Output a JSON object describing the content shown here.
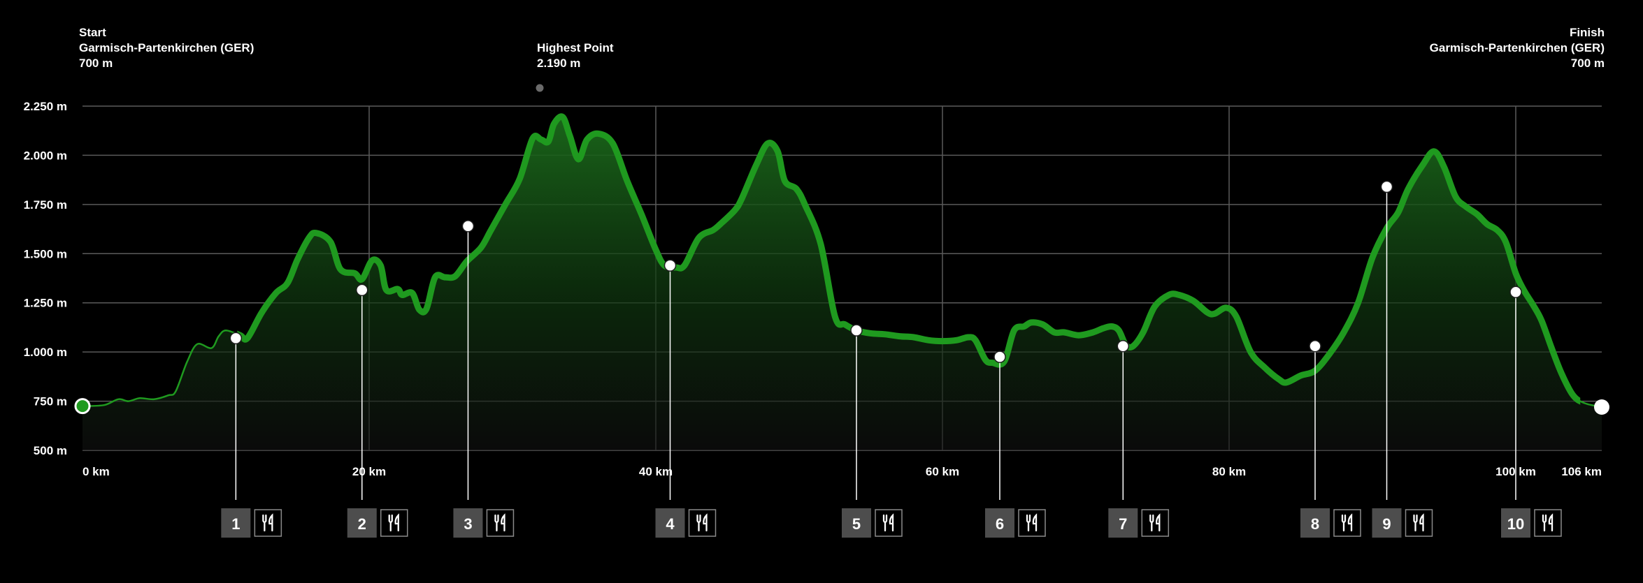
{
  "header": {
    "start": {
      "title": "Start",
      "place": "Garmisch-Partenkirchen (GER)",
      "altitude": "700 m"
    },
    "highest": {
      "title": "Highest Point",
      "altitude": "2.190 m"
    },
    "finish": {
      "title": "Finish",
      "place": "Garmisch-Partenkirchen (GER)",
      "altitude": "700 m"
    }
  },
  "colors": {
    "line": "#1f9a1f",
    "fill_top": "#1b6a1b",
    "grid": "#5a5a5a",
    "badge": "#4d4d4d"
  },
  "icons": {
    "aid_station": "fork-knife-icon"
  },
  "chart_data": {
    "type": "area",
    "x_unit": "km",
    "y_unit": "m",
    "xlim": [
      0,
      106
    ],
    "ylim": [
      500,
      2250
    ],
    "x_ticks": [
      0,
      20,
      40,
      60,
      80,
      100,
      106
    ],
    "x_tick_labels": [
      "0 km",
      "20 km",
      "40 km",
      "60 km",
      "80 km",
      "100 km",
      "106 km"
    ],
    "y_ticks": [
      500,
      750,
      1000,
      1250,
      1500,
      1750,
      2000,
      2250
    ],
    "y_tick_labels": [
      "500 m",
      "750 m",
      "1.000 m",
      "1.250 m",
      "1.500 m",
      "1.750 m",
      "2.000 m",
      "2.250 m"
    ],
    "grid": true,
    "elevation": [
      [
        0,
        725
      ],
      [
        1.5,
        730
      ],
      [
        2.5,
        760
      ],
      [
        3.2,
        750
      ],
      [
        4,
        765
      ],
      [
        5,
        760
      ],
      [
        6,
        780
      ],
      [
        6.5,
        800
      ],
      [
        7.3,
        950
      ],
      [
        8,
        1040
      ],
      [
        9,
        1020
      ],
      [
        9.5,
        1080
      ],
      [
        10,
        1110
      ],
      [
        11,
        1085
      ],
      [
        11.5,
        1070
      ],
      [
        12.5,
        1200
      ],
      [
        13.5,
        1300
      ],
      [
        14.3,
        1350
      ],
      [
        15,
        1470
      ],
      [
        15.8,
        1580
      ],
      [
        16.3,
        1605
      ],
      [
        17.3,
        1560
      ],
      [
        18,
        1420
      ],
      [
        19,
        1400
      ],
      [
        19.5,
        1370
      ],
      [
        20.2,
        1465
      ],
      [
        20.8,
        1440
      ],
      [
        21.2,
        1315
      ],
      [
        22,
        1320
      ],
      [
        22.3,
        1290
      ],
      [
        23,
        1300
      ],
      [
        23.5,
        1215
      ],
      [
        24,
        1220
      ],
      [
        24.6,
        1380
      ],
      [
        25.3,
        1380
      ],
      [
        26,
        1385
      ],
      [
        26.8,
        1460
      ],
      [
        27.8,
        1530
      ],
      [
        28.5,
        1620
      ],
      [
        29.5,
        1750
      ],
      [
        30.5,
        1880
      ],
      [
        31.4,
        2085
      ],
      [
        32,
        2080
      ],
      [
        32.5,
        2070
      ],
      [
        32.9,
        2160
      ],
      [
        33.5,
        2195
      ],
      [
        34,
        2100
      ],
      [
        34.6,
        1980
      ],
      [
        35.2,
        2080
      ],
      [
        36,
        2110
      ],
      [
        37,
        2060
      ],
      [
        38,
        1870
      ],
      [
        39,
        1700
      ],
      [
        40,
        1520
      ],
      [
        40.6,
        1440
      ],
      [
        41.4,
        1430
      ],
      [
        42,
        1440
      ],
      [
        43,
        1580
      ],
      [
        44,
        1620
      ],
      [
        44.5,
        1650
      ],
      [
        45.5,
        1720
      ],
      [
        46,
        1780
      ],
      [
        47,
        1950
      ],
      [
        47.8,
        2060
      ],
      [
        48.5,
        2020
      ],
      [
        49,
        1870
      ],
      [
        49.8,
        1830
      ],
      [
        50.4,
        1750
      ],
      [
        51.5,
        1550
      ],
      [
        52.5,
        1180
      ],
      [
        53.2,
        1140
      ],
      [
        54,
        1110
      ],
      [
        55,
        1095
      ],
      [
        56,
        1090
      ],
      [
        57,
        1080
      ],
      [
        58,
        1075
      ],
      [
        59,
        1060
      ],
      [
        60,
        1055
      ],
      [
        61,
        1060
      ],
      [
        61.8,
        1075
      ],
      [
        62.3,
        1060
      ],
      [
        63,
        960
      ],
      [
        63.5,
        945
      ],
      [
        64.3,
        950
      ],
      [
        65,
        1110
      ],
      [
        65.7,
        1130
      ],
      [
        66.2,
        1150
      ],
      [
        67,
        1140
      ],
      [
        67.8,
        1100
      ],
      [
        68.5,
        1100
      ],
      [
        69.5,
        1085
      ],
      [
        70.5,
        1100
      ],
      [
        71.2,
        1120
      ],
      [
        71.8,
        1130
      ],
      [
        72.3,
        1110
      ],
      [
        72.8,
        1035
      ],
      [
        73.3,
        1030
      ],
      [
        74,
        1100
      ],
      [
        74.8,
        1230
      ],
      [
        75.8,
        1290
      ],
      [
        76.5,
        1290
      ],
      [
        77.5,
        1260
      ],
      [
        78.5,
        1200
      ],
      [
        79,
        1195
      ],
      [
        79.8,
        1225
      ],
      [
        80.5,
        1180
      ],
      [
        81.5,
        1000
      ],
      [
        82.5,
        920
      ],
      [
        83.5,
        860
      ],
      [
        84,
        845
      ],
      [
        85,
        880
      ],
      [
        86,
        905
      ],
      [
        87,
        990
      ],
      [
        88,
        1100
      ],
      [
        89,
        1250
      ],
      [
        90,
        1480
      ],
      [
        91,
        1630
      ],
      [
        91.8,
        1710
      ],
      [
        92.5,
        1830
      ],
      [
        93.5,
        1950
      ],
      [
        94.3,
        2020
      ],
      [
        95,
        1940
      ],
      [
        95.8,
        1790
      ],
      [
        96.5,
        1740
      ],
      [
        97.3,
        1700
      ],
      [
        98,
        1650
      ],
      [
        98.7,
        1620
      ],
      [
        99.3,
        1560
      ],
      [
        100,
        1400
      ],
      [
        100.6,
        1310
      ],
      [
        101.2,
        1240
      ],
      [
        101.8,
        1160
      ],
      [
        102.5,
        1020
      ],
      [
        103.2,
        890
      ],
      [
        104,
        780
      ],
      [
        104.8,
        740
      ],
      [
        106,
        720
      ]
    ],
    "line_emphasis_range": [
      10.8,
      104.5
    ],
    "highest_point": {
      "km": 32.9,
      "altitude": 2190
    },
    "checkpoints": [
      {
        "label": "1",
        "km": 10.7,
        "altitude": 1070
      },
      {
        "label": "2",
        "km": 19.5,
        "altitude": 1315
      },
      {
        "label": "3",
        "km": 26.9,
        "altitude": 1640
      },
      {
        "label": "4",
        "km": 41.0,
        "altitude": 1440
      },
      {
        "label": "5",
        "km": 54.0,
        "altitude": 1110
      },
      {
        "label": "6",
        "km": 64.0,
        "altitude": 975
      },
      {
        "label": "7",
        "km": 72.6,
        "altitude": 1030
      },
      {
        "label": "8",
        "km": 86.0,
        "altitude": 1030
      },
      {
        "label": "9",
        "km": 91.0,
        "altitude": 1840
      },
      {
        "label": "10",
        "km": 100.0,
        "altitude": 1305
      }
    ]
  }
}
